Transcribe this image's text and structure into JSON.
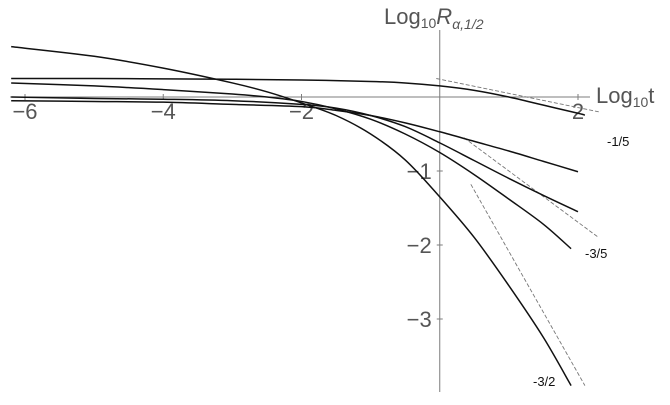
{
  "chart_data": {
    "type": "line",
    "xlabel_main": "Log",
    "xlabel_sub": "10",
    "xlabel_tail": "t",
    "ylabel_main": "Log",
    "ylabel_sub": "10",
    "ylabel_var": "R",
    "ylabel_var_sub": "α,1/2",
    "xlim": [
      -6.2,
      2.3
    ],
    "ylim": [
      -3.9,
      1.3
    ],
    "x_ticks": [
      {
        "value": -6,
        "label": "−6"
      },
      {
        "value": -4,
        "label": "−4"
      },
      {
        "value": -2,
        "label": "−2"
      },
      {
        "value": 2,
        "label": "2"
      }
    ],
    "y_ticks": [
      {
        "value": -1,
        "label": "−1"
      },
      {
        "value": -2,
        "label": "−2"
      },
      {
        "value": -3,
        "label": "−3"
      }
    ],
    "series": [
      {
        "values": [
          [
            -6.2,
            0.25
          ],
          [
            -5,
            0.25
          ],
          [
            -4,
            0.245
          ],
          [
            -3,
            0.24
          ],
          [
            -2,
            0.23
          ],
          [
            -1,
            0.21
          ],
          [
            -0.5,
            0.19
          ],
          [
            0,
            0.15
          ],
          [
            0.5,
            0.09
          ],
          [
            1,
            0.0
          ],
          [
            1.5,
            -0.11
          ],
          [
            2,
            -0.22
          ],
          [
            2.1,
            -0.245
          ]
        ]
      },
      {
        "values": [
          [
            -6.2,
            0.19
          ],
          [
            -5,
            0.15
          ],
          [
            -4,
            0.1
          ],
          [
            -3,
            0.04
          ],
          [
            -2.5,
            0.0
          ],
          [
            -2,
            -0.06
          ],
          [
            -1.5,
            -0.16
          ],
          [
            -1,
            -0.3
          ],
          [
            -0.5,
            -0.5
          ],
          [
            0,
            -0.75
          ],
          [
            0.5,
            -1.05
          ],
          [
            1,
            -1.38
          ],
          [
            1.5,
            -1.72
          ],
          [
            1.9,
            -2.05
          ]
        ]
      },
      {
        "values": [
          [
            -6.2,
            0.0
          ],
          [
            -5,
            -0.02
          ],
          [
            -4,
            -0.03
          ],
          [
            -3,
            -0.05
          ],
          [
            -2,
            -0.1
          ],
          [
            -1.5,
            -0.15
          ],
          [
            -1,
            -0.25
          ],
          [
            -0.5,
            -0.4
          ],
          [
            0,
            -0.62
          ],
          [
            0.5,
            -0.86
          ],
          [
            1,
            -1.1
          ],
          [
            1.5,
            -1.33
          ],
          [
            2,
            -1.55
          ]
        ]
      },
      {
        "values": [
          [
            -6.2,
            -0.05
          ],
          [
            -5,
            -0.06
          ],
          [
            -4,
            -0.07
          ],
          [
            -3,
            -0.1
          ],
          [
            -2,
            -0.13
          ],
          [
            -1.5,
            -0.18
          ],
          [
            -1,
            -0.25
          ],
          [
            -0.5,
            -0.35
          ],
          [
            0,
            -0.47
          ],
          [
            0.5,
            -0.6
          ],
          [
            1,
            -0.73
          ],
          [
            1.5,
            -0.87
          ],
          [
            2,
            -1.01
          ]
        ]
      },
      {
        "values": [
          [
            -6.2,
            0.68
          ],
          [
            -5,
            0.55
          ],
          [
            -4,
            0.39
          ],
          [
            -3,
            0.19
          ],
          [
            -2.5,
            0.07
          ],
          [
            -2,
            -0.08
          ],
          [
            -1.5,
            -0.25
          ],
          [
            -1,
            -0.5
          ],
          [
            -0.5,
            -0.85
          ],
          [
            0,
            -1.35
          ],
          [
            0.5,
            -1.9
          ],
          [
            1,
            -2.55
          ],
          [
            1.5,
            -3.25
          ],
          [
            1.9,
            -3.9
          ]
        ]
      }
    ],
    "asymptotes": [
      {
        "label": "-1/5",
        "from": [
          -0.05,
          0.25
        ],
        "to": [
          2.3,
          -0.2
        ]
      },
      {
        "label": "-3/5",
        "from": [
          0.35,
          -0.55
        ],
        "to": [
          2.3,
          -1.9
        ]
      },
      {
        "label": "-3/2",
        "from": [
          0.45,
          -1.18
        ],
        "to": [
          2.1,
          -3.9
        ]
      }
    ]
  }
}
